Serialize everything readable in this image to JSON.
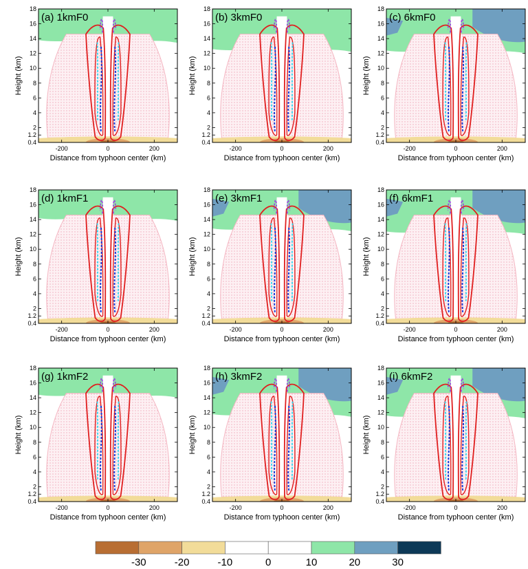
{
  "figure": {
    "colors": {
      "negative": [
        "#b86e33",
        "#dfa468",
        "#f2dc99"
      ],
      "neutral": "#ffffff",
      "positive": [
        "#8ee6a8",
        "#6f9fc0",
        "#0d3957"
      ],
      "contour_red": "#e01e1e",
      "contour_pink": "#f4b6c2",
      "contour_purple": "#9b3fe0",
      "contour_blue": "#1538d6",
      "contour_cyan": "#2ad8f0"
    },
    "colorbar": {
      "labels": [
        "-30",
        "-20",
        "-10",
        "0",
        "10",
        "20",
        "30"
      ]
    }
  },
  "chart_data": [
    {
      "type": "heatmap",
      "panel_label": "(a) 1kmF0",
      "xlabel": "Distance from typhoon center (km)",
      "ylabel": "Height (km)",
      "x_ticks": [
        "-200",
        "0",
        "200"
      ],
      "y_ticks": [
        "0.4",
        "1.2",
        "2",
        "4",
        "6",
        "8",
        "10",
        "12",
        "14",
        "16",
        "18"
      ],
      "xlim": [
        -300,
        300
      ],
      "ylim": [
        0.4,
        18
      ],
      "upper_band": {
        "green_base_km": 13.8,
        "blue": false
      },
      "low_level_core": "warm"
    },
    {
      "type": "heatmap",
      "panel_label": "(b) 3kmF0",
      "xlabel": "Distance from typhoon center (km)",
      "ylabel": "Height (km)",
      "x_ticks": [
        "-200",
        "0",
        "200"
      ],
      "y_ticks": [
        "0.4",
        "1.2",
        "2",
        "4",
        "6",
        "8",
        "10",
        "12",
        "14",
        "16",
        "18"
      ],
      "xlim": [
        -300,
        300
      ],
      "ylim": [
        0.4,
        18
      ],
      "upper_band": {
        "green_base_km": 12.6,
        "blue": false
      },
      "low_level_core": "warm"
    },
    {
      "type": "heatmap",
      "panel_label": "(c) 6kmF0",
      "xlabel": "Distance from typhoon center (km)",
      "ylabel": "Height (km)",
      "x_ticks": [
        "-200",
        "0",
        "200"
      ],
      "y_ticks": [
        "0.4",
        "1.2",
        "2",
        "4",
        "6",
        "8",
        "10",
        "12",
        "14",
        "16",
        "18"
      ],
      "xlim": [
        -300,
        300
      ],
      "ylim": [
        0.4,
        18
      ],
      "upper_band": {
        "green_base_km": 12.4,
        "blue": true
      },
      "low_level_core": "warm"
    },
    {
      "type": "heatmap",
      "panel_label": "(d) 1kmF1",
      "xlabel": "Distance from typhoon center (km)",
      "ylabel": "Height (km)",
      "x_ticks": [
        "-200",
        "0",
        "200"
      ],
      "y_ticks": [
        "0.4",
        "1.2",
        "2",
        "4",
        "6",
        "8",
        "10",
        "12",
        "14",
        "16",
        "18"
      ],
      "xlim": [
        -300,
        300
      ],
      "ylim": [
        0.4,
        18
      ],
      "upper_band": {
        "green_base_km": 14.2,
        "blue": false
      },
      "low_level_core": "warm"
    },
    {
      "type": "heatmap",
      "panel_label": "(e) 3kmF1",
      "xlabel": "Distance from typhoon center (km)",
      "ylabel": "Height (km)",
      "x_ticks": [
        "-200",
        "0",
        "200"
      ],
      "y_ticks": [
        "0.4",
        "1.2",
        "2",
        "4",
        "6",
        "8",
        "10",
        "12",
        "14",
        "16",
        "18"
      ],
      "xlim": [
        -300,
        300
      ],
      "ylim": [
        0.4,
        18
      ],
      "upper_band": {
        "green_base_km": 12.8,
        "blue": true
      },
      "low_level_core": "warm"
    },
    {
      "type": "heatmap",
      "panel_label": "(f) 6kmF1",
      "xlabel": "Distance from typhoon center (km)",
      "ylabel": "Height (km)",
      "x_ticks": [
        "-200",
        "0",
        "200"
      ],
      "y_ticks": [
        "0.4",
        "1.2",
        "2",
        "4",
        "6",
        "8",
        "10",
        "12",
        "14",
        "16",
        "18"
      ],
      "xlim": [
        -300,
        300
      ],
      "ylim": [
        0.4,
        18
      ],
      "upper_band": {
        "green_base_km": 12.4,
        "blue": true
      },
      "low_level_core": "warm"
    },
    {
      "type": "heatmap",
      "panel_label": "(g) 1kmF2",
      "xlabel": "Distance from typhoon center (km)",
      "ylabel": "Height (km)",
      "x_ticks": [
        "-200",
        "0",
        "200"
      ],
      "y_ticks": [
        "0.4",
        "1.2",
        "2",
        "4",
        "6",
        "8",
        "10",
        "12",
        "14",
        "16",
        "18"
      ],
      "xlim": [
        -300,
        300
      ],
      "ylim": [
        0.4,
        18
      ],
      "upper_band": {
        "green_base_km": 14.4,
        "blue": false
      },
      "low_level_core": "warm"
    },
    {
      "type": "heatmap",
      "panel_label": "(h) 3kmF2",
      "xlabel": "Distance from typhoon center (km)",
      "ylabel": "Height (km)",
      "x_ticks": [
        "-200",
        "0",
        "200"
      ],
      "y_ticks": [
        "0.4",
        "1.2",
        "2",
        "4",
        "6",
        "8",
        "10",
        "12",
        "14",
        "16",
        "18"
      ],
      "xlim": [
        -300,
        300
      ],
      "ylim": [
        0.4,
        18
      ],
      "upper_band": {
        "green_base_km": 11.8,
        "blue": true
      },
      "low_level_core": "warm"
    },
    {
      "type": "heatmap",
      "panel_label": "(i) 6kmF2",
      "xlabel": "Distance from typhoon center (km)",
      "ylabel": "Height (km)",
      "x_ticks": [
        "-200",
        "0",
        "200"
      ],
      "y_ticks": [
        "0.4",
        "1.2",
        "2",
        "4",
        "6",
        "8",
        "10",
        "12",
        "14",
        "16",
        "18"
      ],
      "xlim": [
        -300,
        300
      ],
      "ylim": [
        0.4,
        18
      ],
      "upper_band": {
        "green_base_km": 11.6,
        "blue": true
      },
      "low_level_core": "warm"
    }
  ]
}
